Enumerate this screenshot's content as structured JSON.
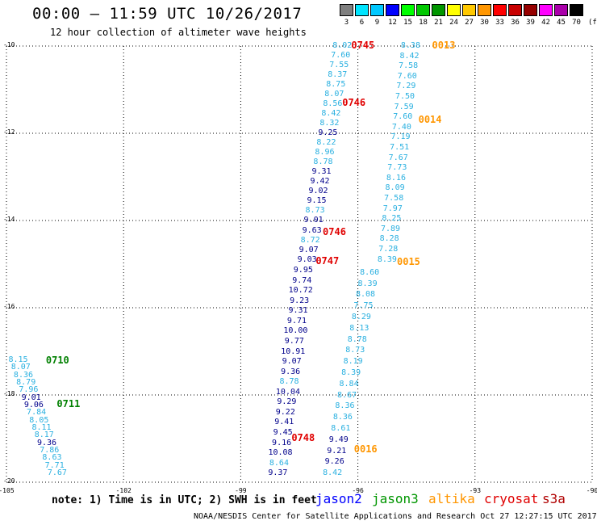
{
  "header": {
    "title": "00:00 – 11:59 UTC 10/26/2017",
    "subtitle": "12 hour collection of altimeter wave heights"
  },
  "scale": {
    "labels": [
      "3",
      "6",
      "9",
      "12",
      "15",
      "18",
      "21",
      "24",
      "27",
      "30",
      "33",
      "36",
      "39",
      "42",
      "45",
      "70",
      "(ft)"
    ],
    "colors": [
      "#7f7f7f",
      "#00e5ff",
      "#00c8ff",
      "#0000ff",
      "#00ff00",
      "#00c800",
      "#009600",
      "#ffff00",
      "#ffc800",
      "#ff9600",
      "#ff0000",
      "#c80000",
      "#960000",
      "#ff00ff",
      "#aa00aa",
      "#000000"
    ]
  },
  "axes": {
    "lat_labels": [
      {
        "lat": -10,
        "label": "-10"
      },
      {
        "lat": -12,
        "label": "-12"
      },
      {
        "lat": -14,
        "label": "-14"
      },
      {
        "lat": -16,
        "label": "-16"
      },
      {
        "lat": -18,
        "label": "-18"
      },
      {
        "lat": -20,
        "label": "-20"
      }
    ],
    "lon_labels": [
      {
        "lon": -105,
        "label": "-105"
      },
      {
        "lon": -102,
        "label": "-102"
      },
      {
        "lon": -99,
        "label": "-99"
      },
      {
        "lon": -96,
        "label": "-96"
      },
      {
        "lon": -93,
        "label": "-93"
      },
      {
        "lon": -90,
        "label": "-90"
      }
    ],
    "lon_range": [
      -105,
      -90
    ],
    "lat_range": [
      -10,
      -20
    ]
  },
  "tracks": [
    {
      "sat": "jason3",
      "color": "#007700",
      "lon_top": -104.7,
      "lat_top": -17.2,
      "lon_bot": -103.7,
      "lat_bot": -19.8,
      "values": [
        "8.15",
        "8.07",
        "8.36",
        "8.79",
        "7.96",
        "9.01",
        "9.06",
        "7.84",
        "8.05",
        "8.11",
        "8.17",
        "9.36",
        "7.86",
        "8.63",
        "7.71",
        "7.67"
      ],
      "times": [
        {
          "label": "0710",
          "lat": -17.22,
          "lon": -103.99
        },
        {
          "label": "0711",
          "lat": -18.22,
          "lon": -103.71
        }
      ]
    },
    {
      "sat": "jason2-a",
      "color": "#00008b",
      "lon_top": -96.4,
      "lat_top": -10.0,
      "lon_bot": -97.3,
      "lat_bot": -14.9,
      "values": [
        "8.02",
        "7.60",
        "7.55",
        "8.37",
        "8.75",
        "8.07",
        "8.56",
        "8.42",
        "8.32",
        "9.25",
        "8.22",
        "8.96",
        "8.78",
        "9.31",
        "9.42",
        "9.02",
        "9.15",
        "8.73",
        "9.01",
        "9.63",
        "8.72",
        "9.07",
        "9.03"
      ],
      "times": [
        {
          "label": "0745",
          "lat": -10.0,
          "lon": -96.17
        },
        {
          "label": "0746",
          "lat": -11.32,
          "lon": -96.4
        },
        {
          "label": "0746",
          "lat": -14.27,
          "lon": -96.9
        },
        {
          "label": "0747",
          "lat": -14.95,
          "lon": -97.08
        }
      ]
    },
    {
      "sat": "jason2-b",
      "color": "#00008b",
      "lon_top": -97.4,
      "lat_top": -15.15,
      "lon_bot": -98.05,
      "lat_bot": -19.8,
      "values": [
        "9.95",
        "9.74",
        "10.72",
        "9.23",
        "9.31",
        "9.71",
        "10.00",
        "9.77",
        "10.91",
        "9.07",
        "9.36",
        "8.78",
        "10.04",
        "9.29",
        "9.22",
        "9.41",
        "9.45",
        "9.16",
        "10.08",
        "8.64",
        "9.37"
      ],
      "times": [
        {
          "label": "0748",
          "lat": -19.0,
          "lon": -97.7
        }
      ]
    },
    {
      "sat": "altika-a",
      "color": "#2ab0e0",
      "lon_top": -94.65,
      "lat_top": -10.0,
      "lon_bot": -95.25,
      "lat_bot": -14.9,
      "values": [
        "8.38",
        "8.42",
        "7.58",
        "7.60",
        "7.29",
        "7.50",
        "7.59",
        "7.60",
        "7.40",
        "7.19",
        "7.51",
        "7.67",
        "7.73",
        "8.16",
        "8.09",
        "7.58",
        "7.97",
        "8.25",
        "7.89",
        "8.28",
        "7.28",
        "8.39"
      ],
      "times": [
        {
          "label": "0013",
          "lat": -10.0,
          "lon": -94.1
        },
        {
          "label": "0014",
          "lat": -11.7,
          "lon": -94.45
        },
        {
          "label": "0015",
          "lat": -14.97,
          "lon": -95.0
        }
      ]
    },
    {
      "sat": "altika-b",
      "color": "#2ab0e0",
      "lon_top": -95.7,
      "lat_top": -15.2,
      "lon_bot": -96.65,
      "lat_bot": -19.8,
      "values": [
        "8.60",
        "8.39",
        "8.08",
        "7.75",
        "8.29",
        "8.13",
        "8.78",
        "8.73",
        "8.19",
        "8.39",
        "8.84",
        "8.67",
        "8.36",
        "8.36",
        "8.61",
        "9.49",
        "9.21",
        "9.26",
        "8.42"
      ],
      "times": [
        {
          "label": "0016",
          "lat": -19.25,
          "lon": -96.1
        }
      ]
    }
  ],
  "darkblue_indices": {
    "jason3": [
      5,
      6,
      11
    ],
    "jason2-a": [
      9,
      13,
      14,
      15,
      16,
      18,
      19,
      21,
      22
    ],
    "jason2-b": [
      0,
      1,
      2,
      3,
      4,
      5,
      6,
      7,
      8,
      9,
      10,
      12,
      13,
      14,
      15,
      16,
      17,
      18,
      20
    ],
    "altika-b": [
      15,
      16,
      17
    ]
  },
  "note": "note: 1) Time is in UTC; 2) SWH is in feet",
  "satellites": [
    {
      "name": "jason2",
      "color": "#0000ff"
    },
    {
      "name": "jason3",
      "color": "#009600"
    },
    {
      "name": "altika",
      "color": "#ff9600"
    },
    {
      "name": "cryosat",
      "color": "#e00000"
    },
    {
      "name": "s3a",
      "color": "#b00000"
    }
  ],
  "footer": "NOAA/NESDIS Center for Satellite Applications and Research   Oct 27 12:27:15 UTC 2017"
}
